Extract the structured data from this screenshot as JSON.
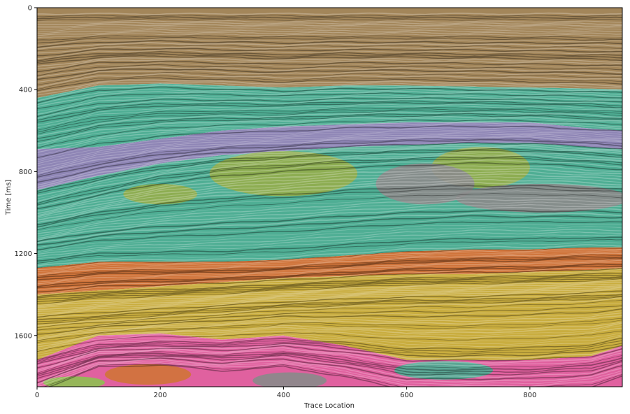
{
  "chart_data": {
    "type": "heatmap",
    "title": "",
    "xlabel": "Trace Location",
    "ylabel": "Time [ms]",
    "xlim": [
      0,
      950
    ],
    "ylim": [
      1850,
      0
    ],
    "y_inverted": true,
    "x_ticks": [
      0,
      200,
      400,
      600,
      800
    ],
    "y_ticks": [
      0,
      400,
      800,
      1200,
      1600
    ],
    "grid": false,
    "legend": "none",
    "background_seismic": true,
    "facies_colors": {
      "tan": "#a3865a",
      "teal": "#4fae94",
      "purple": "#8f86b6",
      "green": "#93ad4c",
      "gray": "#8a8a8a",
      "orange": "#d0743a",
      "yellow": "#c9ad3f",
      "pink": "#e0619f",
      "light_green": "#8fbe52"
    },
    "boundaries": [
      {
        "name": "tan-top",
        "x": [
          0,
          950
        ],
        "t": [
          0,
          0
        ]
      },
      {
        "name": "tan-base",
        "x": [
          0,
          100,
          200,
          300,
          400,
          500,
          600,
          700,
          800,
          900,
          950
        ],
        "t": [
          440,
          380,
          370,
          380,
          390,
          380,
          380,
          385,
          390,
          395,
          400
        ]
      },
      {
        "name": "purple-top",
        "x": [
          0,
          100,
          200,
          300,
          400,
          500,
          600,
          700,
          800,
          900,
          950
        ],
        "t": [
          690,
          680,
          640,
          600,
          580,
          570,
          560,
          560,
          560,
          590,
          600
        ]
      },
      {
        "name": "purple-base",
        "x": [
          0,
          100,
          200,
          300,
          400,
          500,
          600,
          700,
          800,
          900,
          950
        ],
        "t": [
          890,
          820,
          760,
          720,
          700,
          680,
          670,
          660,
          660,
          680,
          690
        ]
      },
      {
        "name": "orange-top",
        "x": [
          0,
          100,
          200,
          300,
          400,
          500,
          600,
          700,
          800,
          900,
          950
        ],
        "t": [
          1270,
          1240,
          1240,
          1240,
          1230,
          1210,
          1190,
          1180,
          1180,
          1170,
          1170
        ]
      },
      {
        "name": "yellow-top",
        "x": [
          0,
          100,
          200,
          300,
          400,
          500,
          600,
          700,
          800,
          900,
          950
        ],
        "t": [
          1400,
          1380,
          1360,
          1340,
          1320,
          1310,
          1300,
          1300,
          1290,
          1280,
          1270
        ]
      },
      {
        "name": "pink-top",
        "x": [
          0,
          100,
          200,
          300,
          400,
          500,
          600,
          700,
          800,
          900,
          950
        ],
        "t": [
          1720,
          1600,
          1590,
          1620,
          1600,
          1650,
          1720,
          1720,
          1720,
          1700,
          1650
        ]
      },
      {
        "name": "base",
        "x": [
          0,
          950
        ],
        "t": [
          1850,
          1850
        ]
      }
    ],
    "bodies": [
      {
        "facies": "green",
        "cx": 400,
        "ct": 810,
        "rx": 120,
        "rt": 110
      },
      {
        "facies": "green",
        "cx": 720,
        "ct": 780,
        "rx": 80,
        "rt": 100
      },
      {
        "facies": "green",
        "cx": 200,
        "ct": 910,
        "rx": 60,
        "rt": 50
      },
      {
        "facies": "gray",
        "cx": 630,
        "ct": 860,
        "rx": 80,
        "rt": 100
      },
      {
        "facies": "gray",
        "cx": 820,
        "ct": 930,
        "rx": 140,
        "rt": 70
      },
      {
        "facies": "gray",
        "cx": 410,
        "ct": 1820,
        "rx": 60,
        "rt": 40
      },
      {
        "facies": "orange",
        "cx": 180,
        "ct": 1790,
        "rx": 70,
        "rt": 50
      },
      {
        "facies": "light_green",
        "cx": 60,
        "ct": 1830,
        "rx": 50,
        "rt": 30
      },
      {
        "facies": "teal",
        "cx": 660,
        "ct": 1770,
        "rx": 80,
        "rt": 45
      }
    ]
  }
}
